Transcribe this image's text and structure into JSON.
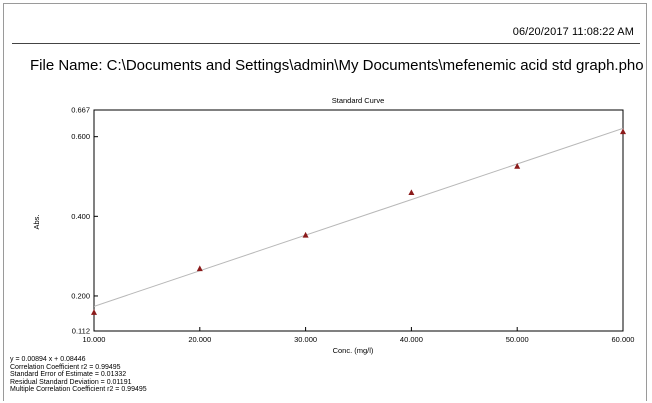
{
  "header": {
    "timestamp": "06/20/2017  11:08:22 AM",
    "file_name": "File Name: C:\\Documents and Settings\\admin\\My Documents\\mefenemic acid std graph.pho"
  },
  "chart_data": {
    "type": "scatter",
    "title": "Standard Curve",
    "xlabel": "Conc. (mg/l)",
    "ylabel": "Abs.",
    "xlim": [
      10,
      60
    ],
    "ylim": [
      0.112,
      0.667
    ],
    "x_ticks": [
      "10.000",
      "20.000",
      "30.000",
      "40.000",
      "50.000",
      "60.000"
    ],
    "y_ticks": [
      "0.112",
      "0.200",
      "0.400",
      "0.600",
      "0.667"
    ],
    "series": [
      {
        "x": [
          10,
          20,
          30,
          40,
          50,
          60
        ],
        "y": [
          0.158,
          0.268,
          0.352,
          0.459,
          0.525,
          0.612
        ]
      }
    ],
    "fit_line": {
      "slope": 0.00894,
      "intercept": 0.08446
    },
    "grid": false,
    "colors": {
      "marker": "#8b1a1a",
      "fit_line": "#b8b8b8",
      "axis": "#000000"
    }
  },
  "stats": {
    "equation": "y = 0.00894 x + 0.08446",
    "correlation": "Correlation Coefficient r2 = 0.99495",
    "std_error": "Standard Error of Estimate = 0.01332",
    "residual_sd": "Residual Standard Deviation = 0.01191",
    "multiple_corr": "Multiple Correlation Coefficient r2 = 0.99495"
  }
}
